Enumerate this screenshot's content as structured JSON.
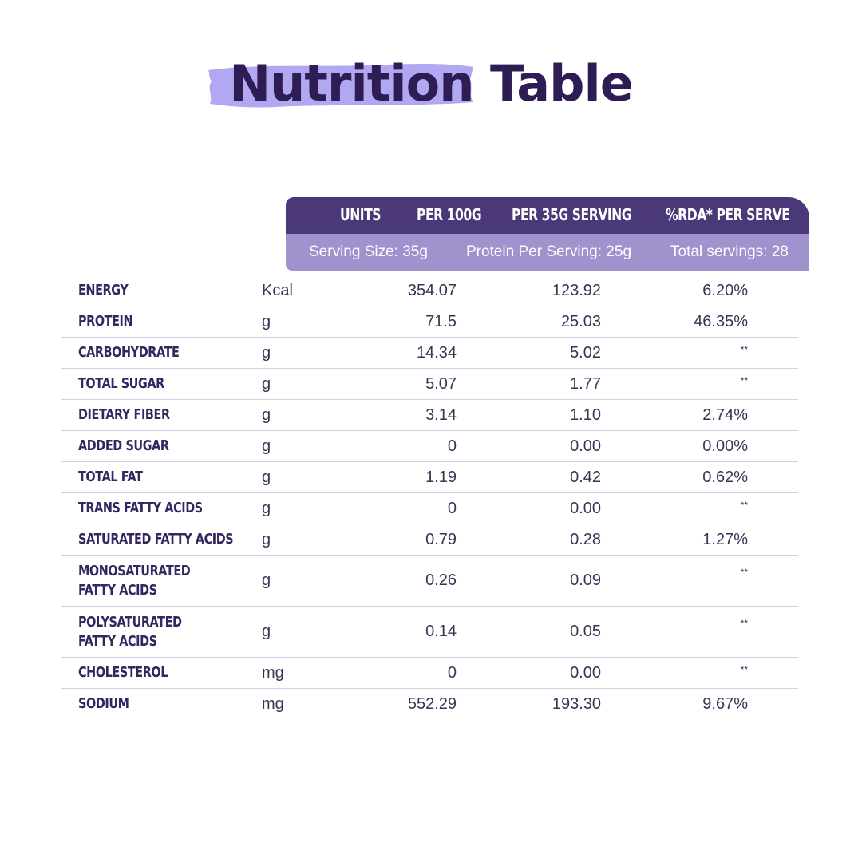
{
  "title": {
    "highlight": "Nutrition",
    "rest": "Table"
  },
  "header": {
    "columns": [
      "UNITS",
      "PER 100G",
      "PER 35G SERVING",
      "%RDA* PER SERVE"
    ],
    "serving_size": "Serving Size: 35g",
    "protein_per_serving": "Protein Per Serving: 25g",
    "total_servings": "Total servings: 28"
  },
  "colors": {
    "title": "#2e1d55",
    "brush": "#b2a8f2",
    "header_dark": "#4a3879",
    "header_light": "#a092cd"
  },
  "rows": [
    {
      "name": "ENERGY",
      "unit": "Kcal",
      "per100": "354.07",
      "serving": "123.92",
      "rda": "6.20%"
    },
    {
      "name": "PROTEIN",
      "unit": "g",
      "per100": "71.5",
      "serving": "25.03",
      "rda": "46.35%"
    },
    {
      "name": "CARBOHYDRATE",
      "unit": "g",
      "per100": "14.34",
      "serving": "5.02",
      "rda": "**"
    },
    {
      "name": "TOTAL SUGAR",
      "unit": "g",
      "per100": "5.07",
      "serving": "1.77",
      "rda": "**"
    },
    {
      "name": "DIETARY FIBER",
      "unit": "g",
      "per100": "3.14",
      "serving": "1.10",
      "rda": "2.74%"
    },
    {
      "name": "ADDED SUGAR",
      "unit": "g",
      "per100": "0",
      "serving": "0.00",
      "rda": "0.00%"
    },
    {
      "name": "TOTAL FAT",
      "unit": "g",
      "per100": "1.19",
      "serving": "0.42",
      "rda": "0.62%"
    },
    {
      "name": "TRANS FATTY ACIDS",
      "unit": "g",
      "per100": "0",
      "serving": "0.00",
      "rda": "**"
    },
    {
      "name": "SATURATED FATTY ACIDS",
      "unit": "g",
      "per100": "0.79",
      "serving": "0.28",
      "rda": "1.27%"
    },
    {
      "name": "MONOSATURATED\nFATTY ACIDS",
      "unit": "g",
      "per100": "0.26",
      "serving": "0.09",
      "rda": "**"
    },
    {
      "name": "POLYSATURATED\nFATTY ACIDS",
      "unit": "g",
      "per100": "0.14",
      "serving": "0.05",
      "rda": "**"
    },
    {
      "name": "CHOLESTEROL",
      "unit": "mg",
      "per100": "0",
      "serving": "0.00",
      "rda": "**"
    },
    {
      "name": "SODIUM",
      "unit": "mg",
      "per100": "552.29",
      "serving": "193.30",
      "rda": "9.67%"
    }
  ]
}
